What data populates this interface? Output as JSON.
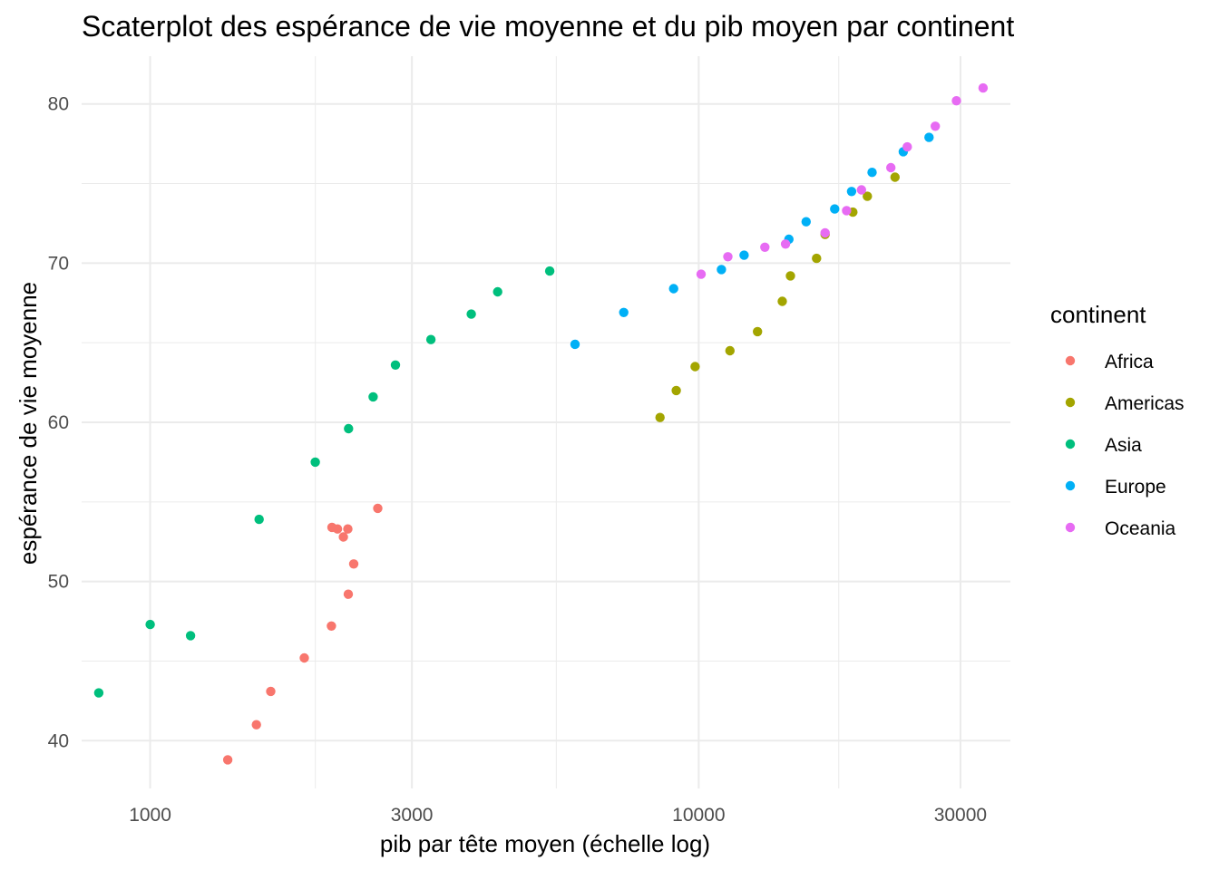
{
  "chart_data": {
    "type": "scatter",
    "title": "Scaterplot des espérance de vie moyenne et du pib moyen par continent",
    "xlabel": "pib par tête moyen (échelle log)",
    "ylabel": "espérance de vie moyenne",
    "x_scale": "log10",
    "xlim": [
      750,
      37000
    ],
    "ylim": [
      37,
      83
    ],
    "x_ticks": [
      1000,
      3000,
      10000,
      30000
    ],
    "x_tick_labels": [
      "1000",
      "3000",
      "10000",
      "30000"
    ],
    "x_minor_ticks": [
      300,
      2000,
      5500,
      18000
    ],
    "y_ticks": [
      40,
      50,
      60,
      70,
      80
    ],
    "y_tick_labels": [
      "40",
      "50",
      "60",
      "70",
      "80"
    ],
    "y_minor_ticks": [
      45,
      55,
      65,
      75
    ],
    "grid": true,
    "legend": {
      "title": "continent",
      "position": "right"
    },
    "series": [
      {
        "name": "Africa",
        "color": "#F8766D",
        "points": [
          [
            1385,
            38.8
          ],
          [
            1562,
            41.0
          ],
          [
            1659,
            43.1
          ],
          [
            1910,
            45.2
          ],
          [
            2140,
            47.2
          ],
          [
            2297,
            49.2
          ],
          [
            2350,
            51.1
          ],
          [
            2250,
            52.8
          ],
          [
            2145,
            53.4
          ],
          [
            2195,
            53.3
          ],
          [
            2293,
            53.3
          ],
          [
            2600,
            54.6
          ]
        ]
      },
      {
        "name": "Americas",
        "color": "#A3A500",
        "points": [
          [
            8500,
            60.3
          ],
          [
            9100,
            62.0
          ],
          [
            9850,
            63.5
          ],
          [
            11400,
            64.5
          ],
          [
            12800,
            65.7
          ],
          [
            14200,
            67.6
          ],
          [
            14700,
            69.2
          ],
          [
            16400,
            70.3
          ],
          [
            17000,
            71.8
          ],
          [
            19100,
            73.2
          ],
          [
            20300,
            74.2
          ],
          [
            22800,
            75.4
          ]
        ]
      },
      {
        "name": "Asia",
        "color": "#00BF7D",
        "points": [
          [
            806,
            43.0
          ],
          [
            1000,
            47.3
          ],
          [
            1185,
            46.6
          ],
          [
            1580,
            53.9
          ],
          [
            2000,
            57.5
          ],
          [
            2300,
            59.6
          ],
          [
            2550,
            61.6
          ],
          [
            2800,
            63.6
          ],
          [
            3250,
            65.2
          ],
          [
            3850,
            66.8
          ],
          [
            4300,
            68.2
          ],
          [
            5350,
            69.5
          ]
        ]
      },
      {
        "name": "Europe",
        "color": "#00B0F6",
        "points": [
          [
            5950,
            64.9
          ],
          [
            7300,
            66.9
          ],
          [
            9000,
            68.4
          ],
          [
            11000,
            69.6
          ],
          [
            12100,
            70.5
          ],
          [
            14600,
            71.5
          ],
          [
            15700,
            72.6
          ],
          [
            17700,
            73.4
          ],
          [
            19000,
            74.5
          ],
          [
            20700,
            75.7
          ],
          [
            23600,
            77.0
          ],
          [
            26300,
            77.9
          ]
        ]
      },
      {
        "name": "Oceania",
        "color": "#E76BF3",
        "points": [
          [
            10100,
            69.3
          ],
          [
            11300,
            70.4
          ],
          [
            13200,
            71.0
          ],
          [
            14400,
            71.2
          ],
          [
            17000,
            71.9
          ],
          [
            18600,
            73.3
          ],
          [
            19800,
            74.6
          ],
          [
            22400,
            76.0
          ],
          [
            24000,
            77.3
          ],
          [
            27000,
            78.6
          ],
          [
            29500,
            80.2
          ],
          [
            33000,
            81.0
          ]
        ]
      }
    ]
  }
}
